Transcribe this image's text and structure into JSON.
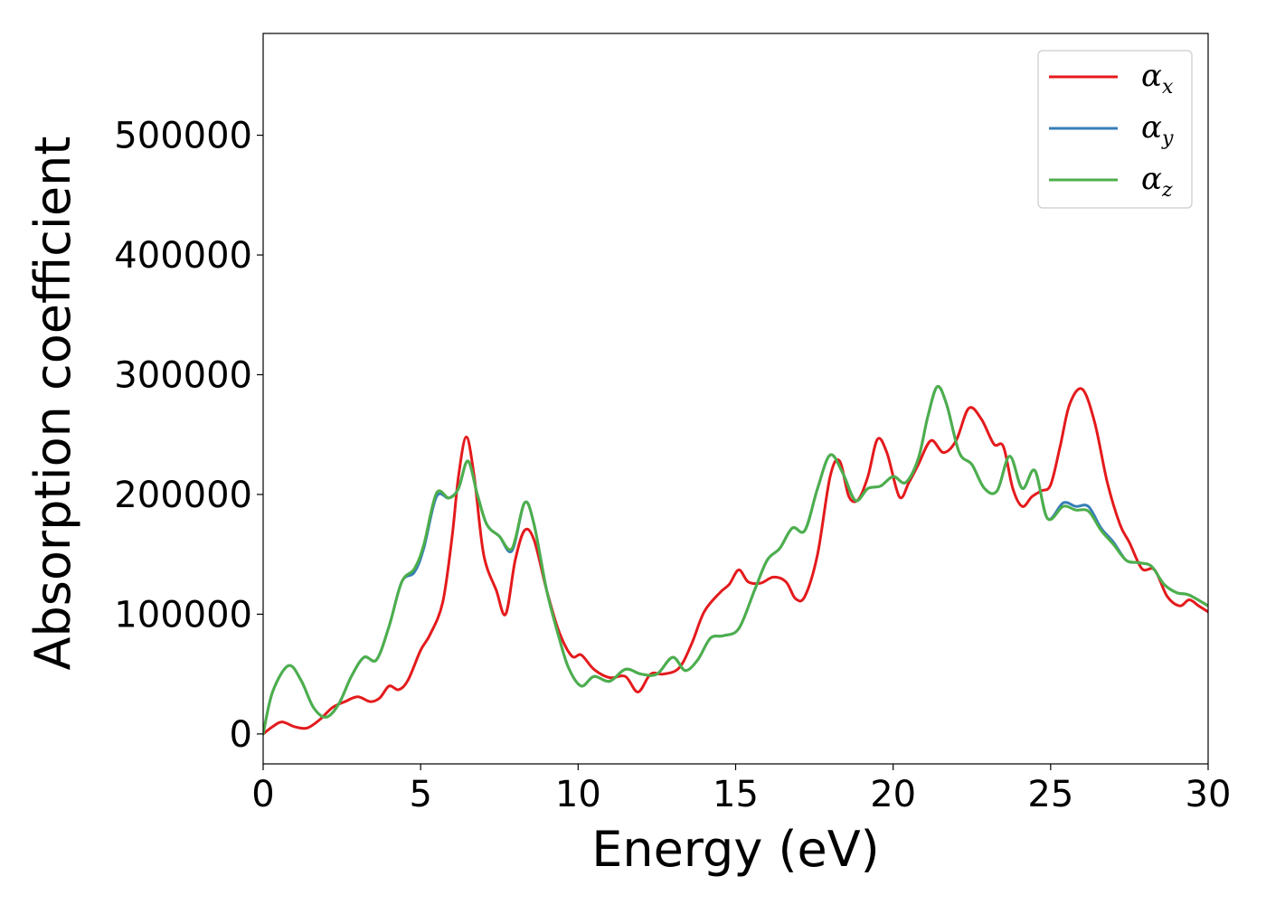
{
  "chart_data": {
    "type": "line",
    "xlabel": "Energy (eV)",
    "ylabel": "Absorption coefficient",
    "xlim": [
      0,
      30
    ],
    "ylim": [
      -25000,
      585000
    ],
    "xticks": [
      0,
      5,
      10,
      15,
      20,
      25,
      30
    ],
    "xtick_labels": [
      "0",
      "5",
      "10",
      "15",
      "20",
      "25",
      "30"
    ],
    "yticks": [
      0,
      100000,
      200000,
      300000,
      400000,
      500000
    ],
    "ytick_labels": [
      "0",
      "100000",
      "200000",
      "300000",
      "400000",
      "500000"
    ],
    "grid": false,
    "legend_position": "top-right",
    "series": [
      {
        "name": "α",
        "subscript": "x",
        "color": "#e41a1c",
        "points": [
          [
            0,
            0
          ],
          [
            0.3,
            6000
          ],
          [
            0.6,
            10000
          ],
          [
            1,
            6000
          ],
          [
            1.4,
            5000
          ],
          [
            1.8,
            12000
          ],
          [
            2.2,
            22000
          ],
          [
            2.6,
            27000
          ],
          [
            3,
            31000
          ],
          [
            3.4,
            27000
          ],
          [
            3.7,
            30000
          ],
          [
            4,
            40000
          ],
          [
            4.3,
            37000
          ],
          [
            4.6,
            45000
          ],
          [
            5,
            70000
          ],
          [
            5.3,
            83000
          ],
          [
            5.7,
            110000
          ],
          [
            6,
            165000
          ],
          [
            6.2,
            215000
          ],
          [
            6.45,
            248000
          ],
          [
            6.7,
            215000
          ],
          [
            7,
            150000
          ],
          [
            7.4,
            120000
          ],
          [
            7.7,
            100000
          ],
          [
            8,
            145000
          ],
          [
            8.3,
            170000
          ],
          [
            8.6,
            162000
          ],
          [
            9,
            120000
          ],
          [
            9.4,
            85000
          ],
          [
            9.8,
            65000
          ],
          [
            10.1,
            66000
          ],
          [
            10.5,
            54000
          ],
          [
            11,
            47000
          ],
          [
            11.5,
            48000
          ],
          [
            11.9,
            35000
          ],
          [
            12.3,
            50000
          ],
          [
            12.7,
            50000
          ],
          [
            13.2,
            55000
          ],
          [
            13.6,
            75000
          ],
          [
            14,
            102000
          ],
          [
            14.5,
            118000
          ],
          [
            14.8,
            125000
          ],
          [
            15.1,
            137000
          ],
          [
            15.4,
            127000
          ],
          [
            15.8,
            126000
          ],
          [
            16.2,
            131000
          ],
          [
            16.6,
            127000
          ],
          [
            16.9,
            113000
          ],
          [
            17.2,
            115000
          ],
          [
            17.6,
            150000
          ],
          [
            18,
            215000
          ],
          [
            18.3,
            228000
          ],
          [
            18.6,
            198000
          ],
          [
            18.9,
            196000
          ],
          [
            19.2,
            215000
          ],
          [
            19.5,
            246000
          ],
          [
            19.8,
            235000
          ],
          [
            20.2,
            198000
          ],
          [
            20.5,
            210000
          ],
          [
            20.8,
            225000
          ],
          [
            21.2,
            245000
          ],
          [
            21.6,
            235000
          ],
          [
            22,
            245000
          ],
          [
            22.4,
            272000
          ],
          [
            22.8,
            263000
          ],
          [
            23.2,
            242000
          ],
          [
            23.5,
            240000
          ],
          [
            23.8,
            205000
          ],
          [
            24.1,
            190000
          ],
          [
            24.4,
            198000
          ],
          [
            24.7,
            203000
          ],
          [
            25,
            208000
          ],
          [
            25.3,
            240000
          ],
          [
            25.6,
            275000
          ],
          [
            26,
            288000
          ],
          [
            26.4,
            260000
          ],
          [
            26.8,
            210000
          ],
          [
            27.2,
            175000
          ],
          [
            27.5,
            160000
          ],
          [
            27.9,
            138000
          ],
          [
            28.3,
            137000
          ],
          [
            28.7,
            115000
          ],
          [
            29.1,
            107000
          ],
          [
            29.4,
            112000
          ],
          [
            29.7,
            107000
          ],
          [
            30,
            102000
          ]
        ]
      },
      {
        "name": "α",
        "subscript": "y",
        "color": "#377eb8",
        "points": [
          [
            0,
            0
          ],
          [
            0.3,
            35000
          ],
          [
            0.8,
            57000
          ],
          [
            1.2,
            45000
          ],
          [
            1.6,
            22000
          ],
          [
            2,
            14000
          ],
          [
            2.4,
            25000
          ],
          [
            2.8,
            48000
          ],
          [
            3.2,
            64000
          ],
          [
            3.6,
            62000
          ],
          [
            4,
            90000
          ],
          [
            4.4,
            127000
          ],
          [
            4.8,
            135000
          ],
          [
            5.1,
            155000
          ],
          [
            5.5,
            198000
          ],
          [
            5.9,
            197000
          ],
          [
            6.2,
            205000
          ],
          [
            6.5,
            228000
          ],
          [
            6.8,
            200000
          ],
          [
            7.1,
            175000
          ],
          [
            7.5,
            165000
          ],
          [
            7.9,
            153000
          ],
          [
            8.3,
            193000
          ],
          [
            8.6,
            175000
          ],
          [
            9,
            120000
          ],
          [
            9.4,
            80000
          ],
          [
            9.7,
            55000
          ],
          [
            10.1,
            40000
          ],
          [
            10.5,
            48000
          ],
          [
            11,
            44000
          ],
          [
            11.5,
            54000
          ],
          [
            12,
            50000
          ],
          [
            12.5,
            50000
          ],
          [
            13,
            64000
          ],
          [
            13.4,
            53000
          ],
          [
            13.8,
            62000
          ],
          [
            14.2,
            80000
          ],
          [
            14.6,
            82000
          ],
          [
            15.1,
            88000
          ],
          [
            15.6,
            120000
          ],
          [
            16,
            145000
          ],
          [
            16.4,
            155000
          ],
          [
            16.8,
            172000
          ],
          [
            17.2,
            170000
          ],
          [
            17.6,
            205000
          ],
          [
            18,
            233000
          ],
          [
            18.4,
            218000
          ],
          [
            18.8,
            195000
          ],
          [
            19.2,
            205000
          ],
          [
            19.6,
            207000
          ],
          [
            20,
            215000
          ],
          [
            20.4,
            210000
          ],
          [
            20.8,
            230000
          ],
          [
            21.1,
            265000
          ],
          [
            21.4,
            290000
          ],
          [
            21.7,
            275000
          ],
          [
            22.1,
            235000
          ],
          [
            22.5,
            225000
          ],
          [
            22.9,
            205000
          ],
          [
            23.3,
            203000
          ],
          [
            23.7,
            232000
          ],
          [
            24.1,
            205000
          ],
          [
            24.5,
            220000
          ],
          [
            24.9,
            180000
          ],
          [
            25.4,
            193000
          ],
          [
            25.8,
            190000
          ],
          [
            26.2,
            190000
          ],
          [
            26.6,
            172000
          ],
          [
            27,
            160000
          ],
          [
            27.4,
            145000
          ],
          [
            27.8,
            143000
          ],
          [
            28.2,
            140000
          ],
          [
            28.6,
            125000
          ],
          [
            29,
            118000
          ],
          [
            29.4,
            116000
          ],
          [
            30,
            107000
          ]
        ]
      },
      {
        "name": "α",
        "subscript": "z",
        "color": "#4daf4a",
        "points": [
          [
            0,
            0
          ],
          [
            0.3,
            35000
          ],
          [
            0.8,
            57000
          ],
          [
            1.2,
            45000
          ],
          [
            1.6,
            22000
          ],
          [
            2,
            14000
          ],
          [
            2.4,
            25000
          ],
          [
            2.8,
            48000
          ],
          [
            3.2,
            64000
          ],
          [
            3.6,
            62000
          ],
          [
            4,
            90000
          ],
          [
            4.4,
            127000
          ],
          [
            4.8,
            138000
          ],
          [
            5.1,
            158000
          ],
          [
            5.5,
            201000
          ],
          [
            5.9,
            197000
          ],
          [
            6.2,
            205000
          ],
          [
            6.5,
            228000
          ],
          [
            6.8,
            200000
          ],
          [
            7.1,
            175000
          ],
          [
            7.5,
            165000
          ],
          [
            7.9,
            155000
          ],
          [
            8.3,
            193000
          ],
          [
            8.6,
            175000
          ],
          [
            9,
            120000
          ],
          [
            9.4,
            80000
          ],
          [
            9.7,
            55000
          ],
          [
            10.1,
            40000
          ],
          [
            10.5,
            48000
          ],
          [
            11,
            44000
          ],
          [
            11.5,
            54000
          ],
          [
            12,
            50000
          ],
          [
            12.5,
            50000
          ],
          [
            13,
            64000
          ],
          [
            13.4,
            53000
          ],
          [
            13.8,
            62000
          ],
          [
            14.2,
            80000
          ],
          [
            14.6,
            82000
          ],
          [
            15.1,
            88000
          ],
          [
            15.6,
            120000
          ],
          [
            16,
            145000
          ],
          [
            16.4,
            155000
          ],
          [
            16.8,
            172000
          ],
          [
            17.2,
            170000
          ],
          [
            17.6,
            205000
          ],
          [
            18,
            233000
          ],
          [
            18.4,
            218000
          ],
          [
            18.8,
            195000
          ],
          [
            19.2,
            205000
          ],
          [
            19.6,
            207000
          ],
          [
            20,
            215000
          ],
          [
            20.4,
            210000
          ],
          [
            20.8,
            230000
          ],
          [
            21.1,
            265000
          ],
          [
            21.4,
            290000
          ],
          [
            21.7,
            275000
          ],
          [
            22.1,
            235000
          ],
          [
            22.5,
            225000
          ],
          [
            22.9,
            205000
          ],
          [
            23.3,
            203000
          ],
          [
            23.7,
            232000
          ],
          [
            24.1,
            205000
          ],
          [
            24.5,
            220000
          ],
          [
            24.9,
            180000
          ],
          [
            25.4,
            190000
          ],
          [
            25.8,
            187000
          ],
          [
            26.2,
            186000
          ],
          [
            26.6,
            170000
          ],
          [
            27,
            158000
          ],
          [
            27.4,
            145000
          ],
          [
            27.8,
            143000
          ],
          [
            28.2,
            140000
          ],
          [
            28.6,
            125000
          ],
          [
            29,
            118000
          ],
          [
            29.4,
            116000
          ],
          [
            30,
            107000
          ]
        ]
      }
    ]
  }
}
